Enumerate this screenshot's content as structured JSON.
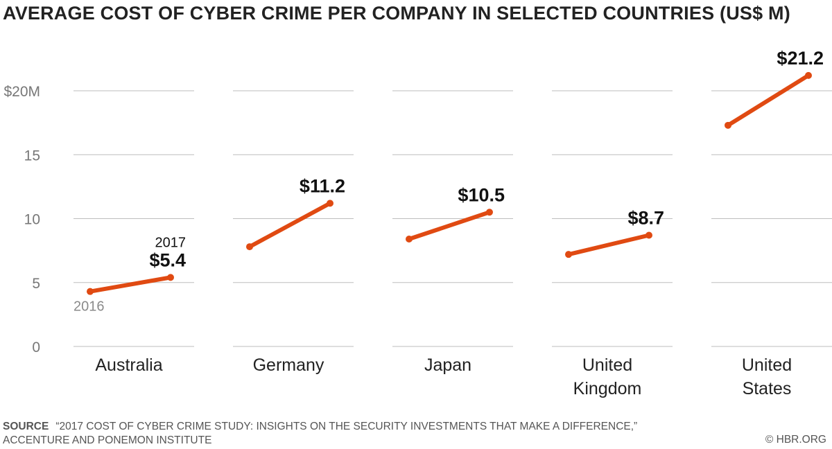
{
  "title": "AVERAGE COST OF CYBER CRIME PER COMPANY IN SELECTED COUNTRIES (US$ M)",
  "source": {
    "label": "SOURCE",
    "text": "“2017 COST OF CYBER CRIME STUDY: INSIGHTS ON THE SECURITY INVESTMENTS THAT MAKE A DIFFERENCE,” ACCENTURE AND PONEMON INSTITUTE"
  },
  "credit": "© HBR.ORG",
  "chart_data": {
    "type": "line",
    "ylim": [
      0,
      20
    ],
    "y_ticks": [
      {
        "value": 0,
        "label": "0"
      },
      {
        "value": 5,
        "label": "5"
      },
      {
        "value": 10,
        "label": "10"
      },
      {
        "value": 15,
        "label": "15"
      },
      {
        "value": 20,
        "label": "$20M"
      }
    ],
    "x_start_label": "2016",
    "x_end_label": "2017",
    "line_color": "#e04a12",
    "panels": [
      {
        "country": [
          "Australia"
        ],
        "values": [
          4.3,
          5.4
        ],
        "end_label": "$5.4"
      },
      {
        "country": [
          "Germany"
        ],
        "values": [
          7.8,
          11.2
        ],
        "end_label": "$11.2"
      },
      {
        "country": [
          "Japan"
        ],
        "values": [
          8.4,
          10.5
        ],
        "end_label": "$10.5"
      },
      {
        "country": [
          "United",
          "Kingdom"
        ],
        "values": [
          7.2,
          8.7
        ],
        "end_label": "$8.7"
      },
      {
        "country": [
          "United",
          "States"
        ],
        "values": [
          17.3,
          21.2
        ],
        "end_label": "$21.2"
      }
    ]
  }
}
